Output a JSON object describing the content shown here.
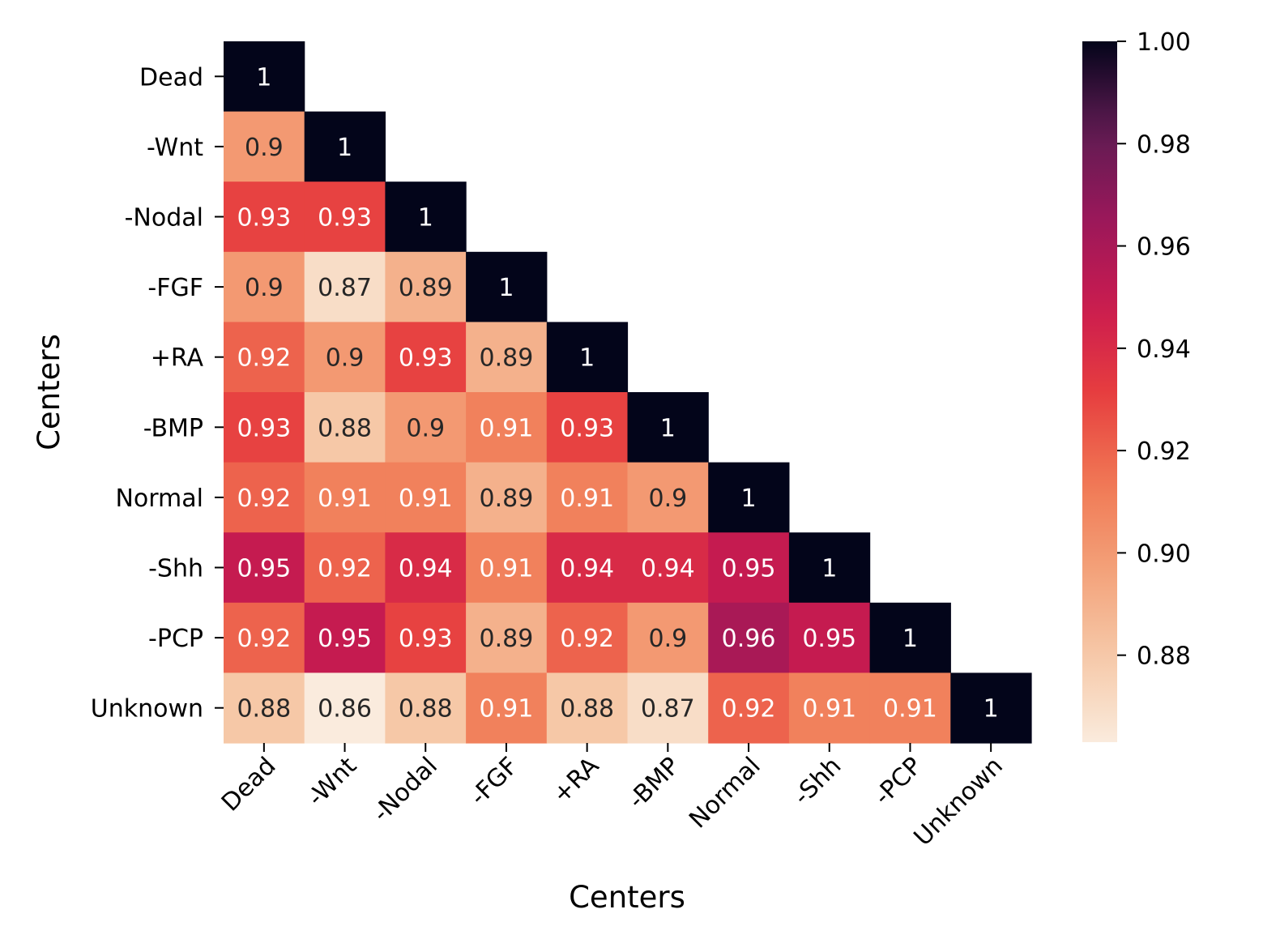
{
  "chart_data": {
    "type": "heatmap",
    "title": "",
    "xlabel": "Centers",
    "ylabel": "Centers",
    "categories": [
      "Dead",
      "-Wnt",
      "-Nodal",
      "-FGF",
      "+RA",
      "-BMP",
      "Normal",
      "-Shh",
      "-PCP",
      "Unknown"
    ],
    "values": [
      [
        1
      ],
      [
        0.9,
        1
      ],
      [
        0.93,
        0.93,
        1
      ],
      [
        0.9,
        0.87,
        0.89,
        1
      ],
      [
        0.92,
        0.9,
        0.93,
        0.89,
        1
      ],
      [
        0.93,
        0.88,
        0.9,
        0.91,
        0.93,
        1
      ],
      [
        0.92,
        0.91,
        0.91,
        0.89,
        0.91,
        0.9,
        1
      ],
      [
        0.95,
        0.92,
        0.94,
        0.91,
        0.94,
        0.94,
        0.95,
        1
      ],
      [
        0.92,
        0.95,
        0.93,
        0.89,
        0.92,
        0.9,
        0.96,
        0.95,
        1
      ],
      [
        0.88,
        0.86,
        0.88,
        0.91,
        0.88,
        0.87,
        0.92,
        0.91,
        0.91,
        1
      ]
    ],
    "mask": "upper-triangle",
    "colormap": "rocket_r",
    "vmin": 0.863,
    "vmax": 1.0,
    "colorbar_ticks": [
      "0.88",
      "0.90",
      "0.92",
      "0.94",
      "0.96",
      "0.98",
      "1.00"
    ],
    "colorbar_position": "right"
  }
}
